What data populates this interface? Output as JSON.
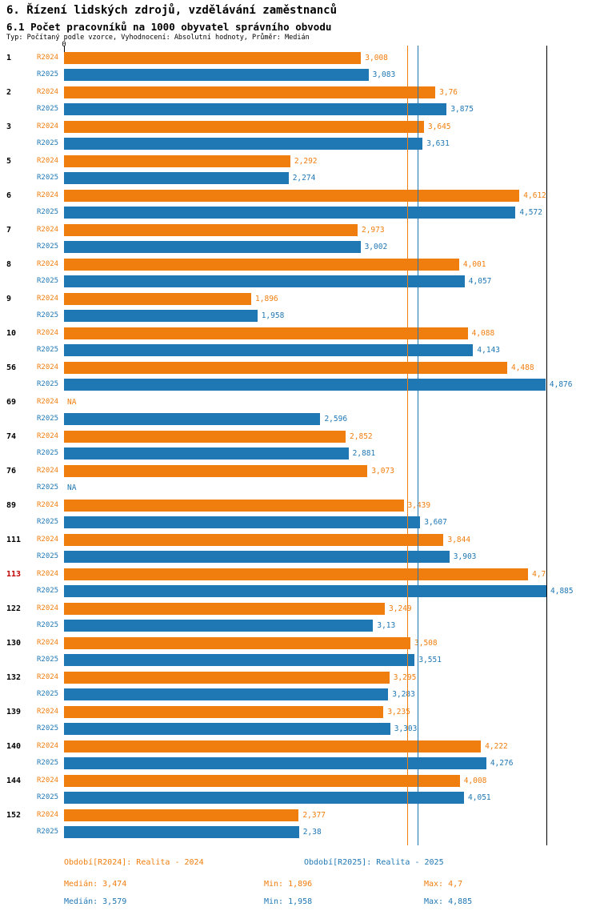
{
  "title": "6. Řízení lidských zdrojů, vzdělávání zaměstnanců",
  "subtitle": "6.1 Počet pracovníků na 1000 obyvatel správního obvodu",
  "meta": "Typ: Počítaný podle vzorce, Vyhodnocení: Absolutní hodnoty, Průměr: Medián",
  "colors": {
    "r2024": "#F07E0E",
    "r2025": "#1F77B4",
    "highlight": "#C00000",
    "axis": "#000000"
  },
  "chart_data": {
    "type": "bar",
    "orientation": "horizontal",
    "series_labels": [
      "R2024",
      "R2025"
    ],
    "axis": {
      "zero_label": "0",
      "xmin": 0,
      "xmax": 4.885
    },
    "medians": {
      "r2024": 3.474,
      "r2025": 3.579
    },
    "groups": [
      {
        "id": "1",
        "highlight": false,
        "r2024": {
          "value": 3.008,
          "label": "3,008"
        },
        "r2025": {
          "value": 3.083,
          "label": "3,083"
        }
      },
      {
        "id": "2",
        "highlight": false,
        "r2024": {
          "value": 3.76,
          "label": "3,76"
        },
        "r2025": {
          "value": 3.875,
          "label": "3,875"
        }
      },
      {
        "id": "3",
        "highlight": false,
        "r2024": {
          "value": 3.645,
          "label": "3,645"
        },
        "r2025": {
          "value": 3.631,
          "label": "3,631"
        }
      },
      {
        "id": "5",
        "highlight": false,
        "r2024": {
          "value": 2.292,
          "label": "2,292"
        },
        "r2025": {
          "value": 2.274,
          "label": "2,274"
        }
      },
      {
        "id": "6",
        "highlight": false,
        "r2024": {
          "value": 4.612,
          "label": "4,612"
        },
        "r2025": {
          "value": 4.572,
          "label": "4,572"
        }
      },
      {
        "id": "7",
        "highlight": false,
        "r2024": {
          "value": 2.973,
          "label": "2,973"
        },
        "r2025": {
          "value": 3.002,
          "label": "3,002"
        }
      },
      {
        "id": "8",
        "highlight": false,
        "r2024": {
          "value": 4.001,
          "label": "4,001"
        },
        "r2025": {
          "value": 4.057,
          "label": "4,057"
        }
      },
      {
        "id": "9",
        "highlight": false,
        "r2024": {
          "value": 1.896,
          "label": "1,896"
        },
        "r2025": {
          "value": 1.958,
          "label": "1,958"
        }
      },
      {
        "id": "10",
        "highlight": false,
        "r2024": {
          "value": 4.088,
          "label": "4,088"
        },
        "r2025": {
          "value": 4.143,
          "label": "4,143"
        }
      },
      {
        "id": "56",
        "highlight": false,
        "r2024": {
          "value": 4.488,
          "label": "4,488"
        },
        "r2025": {
          "value": 4.876,
          "label": "4,876"
        }
      },
      {
        "id": "69",
        "highlight": false,
        "r2024": {
          "value": null,
          "label": "NA"
        },
        "r2025": {
          "value": 2.596,
          "label": "2,596"
        }
      },
      {
        "id": "74",
        "highlight": false,
        "r2024": {
          "value": 2.852,
          "label": "2,852"
        },
        "r2025": {
          "value": 2.881,
          "label": "2,881"
        }
      },
      {
        "id": "76",
        "highlight": false,
        "r2024": {
          "value": 3.073,
          "label": "3,073"
        },
        "r2025": {
          "value": null,
          "label": "NA"
        }
      },
      {
        "id": "89",
        "highlight": false,
        "r2024": {
          "value": 3.439,
          "label": "3,439"
        },
        "r2025": {
          "value": 3.607,
          "label": "3,607"
        }
      },
      {
        "id": "111",
        "highlight": false,
        "r2024": {
          "value": 3.844,
          "label": "3,844"
        },
        "r2025": {
          "value": 3.903,
          "label": "3,903"
        }
      },
      {
        "id": "113",
        "highlight": true,
        "r2024": {
          "value": 4.7,
          "label": "4,7"
        },
        "r2025": {
          "value": 4.885,
          "label": "4,885"
        }
      },
      {
        "id": "122",
        "highlight": false,
        "r2024": {
          "value": 3.249,
          "label": "3,249"
        },
        "r2025": {
          "value": 3.13,
          "label": "3,13"
        }
      },
      {
        "id": "130",
        "highlight": false,
        "r2024": {
          "value": 3.508,
          "label": "3,508"
        },
        "r2025": {
          "value": 3.551,
          "label": "3,551"
        }
      },
      {
        "id": "132",
        "highlight": false,
        "r2024": {
          "value": 3.295,
          "label": "3,295"
        },
        "r2025": {
          "value": 3.283,
          "label": "3,283"
        }
      },
      {
        "id": "139",
        "highlight": false,
        "r2024": {
          "value": 3.235,
          "label": "3,235"
        },
        "r2025": {
          "value": 3.303,
          "label": "3,303"
        }
      },
      {
        "id": "140",
        "highlight": false,
        "r2024": {
          "value": 4.222,
          "label": "4,222"
        },
        "r2025": {
          "value": 4.276,
          "label": "4,276"
        }
      },
      {
        "id": "144",
        "highlight": false,
        "r2024": {
          "value": 4.008,
          "label": "4,008"
        },
        "r2025": {
          "value": 4.051,
          "label": "4,051"
        }
      },
      {
        "id": "152",
        "highlight": false,
        "r2024": {
          "value": 2.377,
          "label": "2,377"
        },
        "r2025": {
          "value": 2.38,
          "label": "2,38"
        }
      }
    ]
  },
  "footer": {
    "period_2024": "Období[R2024]: Realita - 2024",
    "period_2025": "Období[R2025]: Realita - 2025",
    "median_2024": "Medián: 3,474",
    "min_2024": "Min: 1,896",
    "max_2024": "Max: 4,7",
    "median_2025": "Medián: 3,579",
    "min_2025": "Min: 1,958",
    "max_2025": "Max: 4,885"
  }
}
